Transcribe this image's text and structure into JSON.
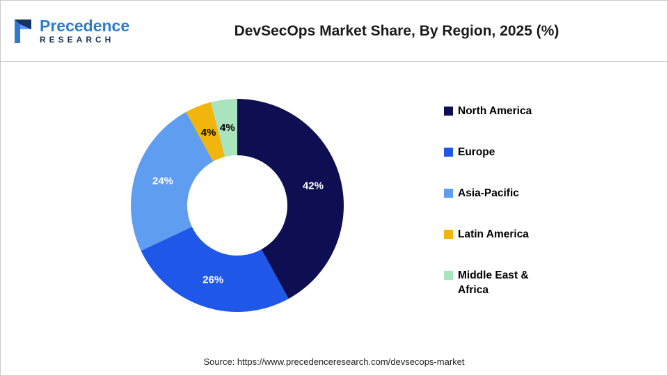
{
  "header": {
    "logo_line1": "Precedence",
    "logo_line2": "RESEARCH",
    "title": "DevSecOps Market Share, By Region, 2025 (%)"
  },
  "chart_data": {
    "type": "pie",
    "subtype": "donut",
    "title": "DevSecOps Market Share, By Region, 2025 (%)",
    "categories": [
      "North America",
      "Europe",
      "Asia-Pacific",
      "Latin America",
      "Middle East & Africa"
    ],
    "values": [
      42,
      26,
      24,
      4,
      4
    ],
    "unit": "%",
    "colors": [
      "#0e0e52",
      "#1f58e8",
      "#5f9df0",
      "#f2b50d",
      "#a9e4bf"
    ],
    "slice_labels": [
      "42%",
      "26%",
      "24%",
      "4%",
      "4%"
    ],
    "slice_label_colors": [
      "#ffffff",
      "#ffffff",
      "#ffffff",
      "#000000",
      "#000000"
    ],
    "legend_position": "right",
    "start_angle_deg": 0,
    "direction": "clockwise",
    "outer_radius": 153,
    "inner_radius": 72
  },
  "footer": {
    "source": "Source: https://www.precedenceresearch.com/devsecops-market"
  }
}
